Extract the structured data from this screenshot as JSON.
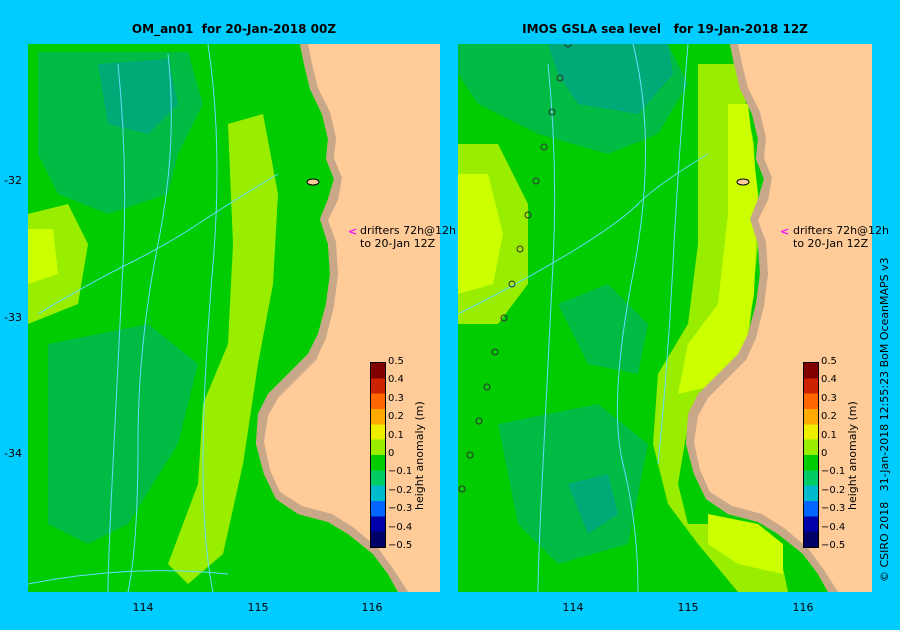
{
  "panels": {
    "left": {
      "title": "OM_an01  for 20-Jan-2018 00Z"
    },
    "right": {
      "title": "IMOS GSLA sea level   for 19-Jan-2018 12Z"
    }
  },
  "axes": {
    "latitude_ticks": [
      "-32",
      "-33",
      "-34"
    ],
    "longitude_ticks": [
      "114",
      "115",
      "116"
    ]
  },
  "drifters": {
    "line1": "drifters 72h@12h",
    "line2": "to 20-Jan 12Z",
    "arrow": "<"
  },
  "colorbar": {
    "label": "height anomaly (m)",
    "ticks": [
      "0.5",
      "0.4",
      "0.3",
      "0.2",
      "0.1",
      "0",
      "−0.1",
      "−0.2",
      "−0.3",
      "−0.4",
      "−0.5"
    ],
    "colors": [
      "#800000",
      "#cc2200",
      "#ff6600",
      "#ffaa00",
      "#eeee00",
      "#99ee00",
      "#00cc00",
      "#00cc66",
      "#00bbcc",
      "#0066ff",
      "#0000aa",
      "#000066"
    ]
  },
  "credit": "© CSIRO 2018   31-Jan-2018 12:55:23 BoM OceanMAPS v3",
  "colors": {
    "background": "#00ccff",
    "land": "#ffcc99",
    "coast_strip": "#c8a888",
    "anom_plus_0_1": "#99ee00",
    "anom_plus_0_2": "#ccff00",
    "anom_0": "#00cc00",
    "anom_minus_0_1": "#00bb44",
    "anom_minus_0_2": "#00aa77",
    "contour": "#66ddff",
    "drifter_arrow": "#ff00ff"
  }
}
